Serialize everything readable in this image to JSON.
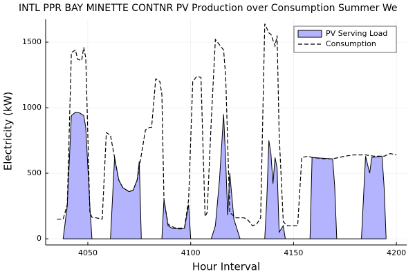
{
  "chart_data": {
    "type": "area-line",
    "title": "INTL PPR BAY MINETTE CONTNR PV Production over Consumption Summer We",
    "x_label": "Hour Interval",
    "y_label": "Electricity (kW)",
    "xlim": [
      4029.5,
      4205
    ],
    "ylim": [
      -47,
      1674
    ],
    "xticks": [
      4050,
      4100,
      4150,
      4200
    ],
    "yticks": [
      0,
      500,
      1000,
      1500
    ],
    "grid": true,
    "legend": "top-right",
    "series": [
      {
        "name": "PV Serving Load",
        "color": "#b4b4fe",
        "fill": true,
        "x": [
          4038,
          4040,
          4042,
          4044,
          4046,
          4048,
          4049,
          4051,
          4052,
          4061,
          4063,
          4065,
          4067,
          4070,
          4072,
          4074,
          4075,
          4076,
          4086,
          4087,
          4089,
          4091,
          4095,
          4097,
          4099,
          4100,
          4110,
          4112,
          4114,
          4116,
          4117,
          4118,
          4119,
          4121,
          4124,
          4136,
          4137,
          4138,
          4139,
          4140,
          4141,
          4142,
          4143,
          4145,
          4146,
          4158,
          4159,
          4169,
          4170,
          4171,
          4183,
          4185,
          4187,
          4188,
          4193,
          4194,
          4195
        ],
        "values": [
          0,
          250,
          940,
          965,
          960,
          940,
          850,
          250,
          0,
          0,
          620,
          450,
          390,
          360,
          370,
          450,
          590,
          0,
          0,
          300,
          100,
          80,
          75,
          80,
          260,
          0,
          0,
          100,
          450,
          950,
          600,
          180,
          500,
          150,
          0,
          0,
          300,
          750,
          650,
          420,
          620,
          540,
          50,
          100,
          0,
          0,
          620,
          610,
          400,
          0,
          0,
          630,
          500,
          620,
          630,
          400,
          0
        ]
      },
      {
        "name": "Consumption",
        "color": "#000000",
        "dash": true,
        "x": [
          4035,
          4038,
          4040,
          4042,
          4044,
          4045,
          4047,
          4048,
          4049,
          4051,
          4052,
          4054,
          4057,
          4059,
          4061,
          4063,
          4065,
          4067,
          4070,
          4072,
          4074,
          4076,
          4078,
          4080,
          4081,
          4083,
          4085,
          4086,
          4087,
          4089,
          4092,
          4095,
          4097,
          4099,
          4101,
          4103,
          4105,
          4107,
          4108,
          4110,
          4112,
          4114,
          4116,
          4117,
          4119,
          4122,
          4126,
          4128,
          4130,
          4132,
          4134,
          4136,
          4138,
          4139,
          4141,
          4142,
          4143,
          4145,
          4147,
          4149,
          4152,
          4154,
          4157,
          4159,
          4165,
          4169,
          4175,
          4179,
          4185,
          4189,
          4194,
          4197,
          4200
        ],
        "values": [
          150,
          150,
          260,
          1420,
          1440,
          1370,
          1360,
          1460,
          1380,
          200,
          165,
          160,
          150,
          810,
          790,
          620,
          450,
          390,
          360,
          370,
          450,
          640,
          830,
          850,
          850,
          1220,
          1200,
          1100,
          300,
          110,
          85,
          80,
          85,
          300,
          1200,
          1240,
          1230,
          170,
          200,
          900,
          1520,
          1480,
          1440,
          1240,
          200,
          160,
          160,
          140,
          100,
          110,
          160,
          1640,
          1570,
          1560,
          1470,
          1550,
          800,
          130,
          100,
          100,
          100,
          620,
          630,
          620,
          610,
          610,
          630,
          640,
          640,
          630,
          630,
          650,
          640
        ]
      }
    ]
  }
}
